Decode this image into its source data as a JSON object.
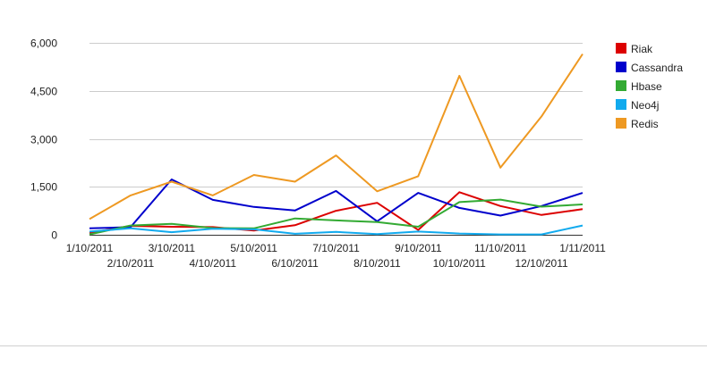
{
  "chart_data": {
    "type": "line",
    "categories": [
      "1/10/2011",
      "2/10/2011",
      "3/10/2011",
      "4/10/2011",
      "5/10/2011",
      "6/10/2011",
      "7/10/2011",
      "8/10/2011",
      "9/10/2011",
      "10/10/2011",
      "11/10/2011",
      "12/10/2011",
      "1/11/2011"
    ],
    "ylim": [
      0,
      6000
    ],
    "yticks": [
      0,
      1500,
      3000,
      4500,
      6000
    ],
    "ytick_labels": [
      "0",
      "1,500",
      "3,000",
      "4,500",
      "6,000"
    ],
    "grid": true,
    "legend_position": "right",
    "series": [
      {
        "name": "Riak",
        "color": "#dc0000",
        "values": [
          60,
          280,
          250,
          240,
          130,
          300,
          750,
          1000,
          150,
          1330,
          900,
          620,
          800
        ]
      },
      {
        "name": "Cassandra",
        "color": "#0000cc",
        "values": [
          200,
          240,
          1730,
          1090,
          870,
          760,
          1370,
          420,
          1310,
          840,
          600,
          900,
          1310
        ]
      },
      {
        "name": "Hbase",
        "color": "#33aa33",
        "values": [
          10,
          290,
          340,
          210,
          200,
          510,
          450,
          400,
          250,
          1020,
          1100,
          880,
          950
        ]
      },
      {
        "name": "Neo4j",
        "color": "#11aaee",
        "values": [
          100,
          200,
          80,
          190,
          170,
          30,
          90,
          20,
          100,
          40,
          10,
          10,
          290
        ]
      },
      {
        "name": "Redis",
        "color": "#ee9922",
        "values": [
          490,
          1230,
          1660,
          1230,
          1870,
          1660,
          2480,
          1360,
          1830,
          4970,
          2100,
          3700,
          5650
        ]
      }
    ]
  }
}
